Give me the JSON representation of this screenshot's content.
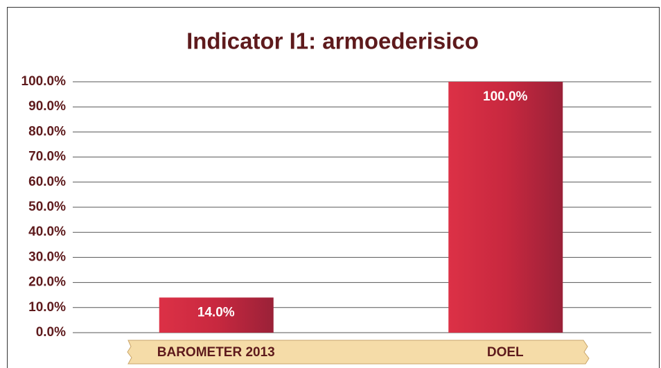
{
  "chart_data": {
    "type": "bar",
    "title": "Indicator I1: armoederisico",
    "categories": [
      "BAROMETER 2013",
      "DOEL"
    ],
    "values": [
      14.0,
      100.0
    ],
    "value_labels": [
      "14.0%",
      "100.0%"
    ],
    "color": "#c8283f",
    "ylim": [
      0,
      100
    ],
    "yticks": [
      {
        "value": 0,
        "label": "0.0%"
      },
      {
        "value": 10,
        "label": "10.0%"
      },
      {
        "value": 20,
        "label": "20.0%"
      },
      {
        "value": 30,
        "label": "30.0%"
      },
      {
        "value": 40,
        "label": "40.0%"
      },
      {
        "value": 50,
        "label": "50.0%"
      },
      {
        "value": 60,
        "label": "60.0%"
      },
      {
        "value": 70,
        "label": "70.0%"
      },
      {
        "value": 80,
        "label": "80.0%"
      },
      {
        "value": 90,
        "label": "90.0%"
      },
      {
        "value": 100,
        "label": "100.0%"
      }
    ],
    "grid": true
  }
}
